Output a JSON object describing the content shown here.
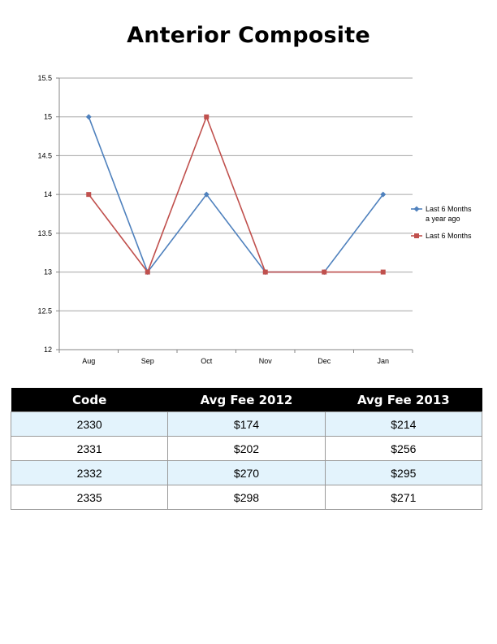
{
  "title": "Anterior Composite",
  "chart_data": {
    "type": "line",
    "categories": [
      "Aug",
      "Sep",
      "Oct",
      "Nov",
      "Dec",
      "Jan"
    ],
    "ylim": [
      12,
      15.5
    ],
    "yticks": [
      "15.5",
      "15",
      "14.5",
      "14",
      "13.5",
      "13",
      "12.5",
      "12"
    ],
    "grid": true,
    "legend_position": "right",
    "series": [
      {
        "name_lines": [
          "Last 6 Months",
          "a year ago"
        ],
        "color": "#4f81bd",
        "marker": "diamond",
        "values": [
          15,
          13,
          14,
          13,
          13,
          14
        ]
      },
      {
        "name_lines": [
          "Last 6 Months"
        ],
        "color": "#c0504d",
        "marker": "square",
        "values": [
          14,
          13,
          15,
          13,
          13,
          13
        ]
      }
    ]
  },
  "table": {
    "headers": [
      "Code",
      "Avg Fee 2012",
      "Avg Fee 2013"
    ],
    "rows": [
      [
        "2330",
        "$174",
        "$214"
      ],
      [
        "2331",
        "$202",
        "$256"
      ],
      [
        "2332",
        "$270",
        "$295"
      ],
      [
        "2335",
        "$298",
        "$271"
      ]
    ]
  }
}
